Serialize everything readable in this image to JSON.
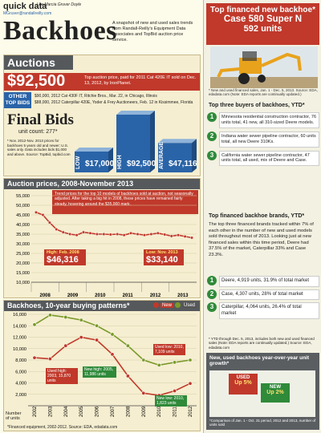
{
  "header": {
    "kicker": "quick data",
    "byline": "| by Marcia Gruver Doyle",
    "email": "MGruver@randallreilly.com",
    "title": "Backhoes",
    "intro": "A snapshot of new and used sales trends from Randall-Reilly's Equipment Data Associates and TopBid auction price service."
  },
  "auctions": {
    "heading": "Auctions",
    "top_price": "$92,500",
    "top_price_text": "Top auction price, paid for 2011 Cat 420E IT sold on Dec. 13, 2012, by IronPlanet.",
    "other_label": "OTHER TOP BIDS",
    "other_bids": [
      "$90,000, 2012 Cat 430F IT, Ritchie Bros., Mar. 22, in Chicago, Illinois",
      "$88,000, 2012 Caterpillar 420E, Yoder & Frey Auctioneers, Feb. 12 in Kissimmee, Florida"
    ]
  },
  "final_bids": {
    "heading": "Final Bids",
    "unit_count": "unit count: 277*",
    "note": "* Nov. 2012-Nov. 2013 prices for backhoes 5 years old and newer; U.S. sales only. Data includes bids $1,000 and above. Source: TopBid, topbid.com",
    "bars": [
      {
        "label": "LOW",
        "value": "$17,000",
        "level": 0.18
      },
      {
        "label": "HIGH",
        "value": "$92,500",
        "level": 1.0
      },
      {
        "label": "AVERAGE",
        "value": "$47,116",
        "level": 0.51
      }
    ]
  },
  "auction_chart": {
    "heading": "Auction prices, 2008-November 2013",
    "desc": "Trend prices for the top 10 models of backhoes sold at auction, not seasonally adjusted. After taking a big hit in 2008, these prices have remained fairly steady, hovering around the $35,000 mark.",
    "high_label": "High: Feb. 2008",
    "high_value": "$46,316",
    "low_label": "Low: Nov. 2013",
    "low_value": "$33,140",
    "yticks": [
      "55,000",
      "50,000",
      "45,000",
      "40,000",
      "35,000",
      "30,000",
      "25,000",
      "20,000",
      "15,000",
      "10,000"
    ],
    "xyears": [
      "2008",
      "2009",
      "2010",
      "2011",
      "2012",
      "2013"
    ]
  },
  "buying_chart": {
    "heading": "Backhoes, 10-year buying patterns*",
    "legend_new": "New",
    "legend_used": "Used",
    "yticks": [
      "16,000",
      "14,000",
      "12,000",
      "10,000",
      "8,000",
      "6,000",
      "4,000",
      "2,000"
    ],
    "xlabels": [
      "2002",
      "2003",
      "2004",
      "2005",
      "2006",
      "2007",
      "2008",
      "2009",
      "2010",
      "2011",
      "2012"
    ],
    "ann_used_high": "Used high: 2003, 15,870 units",
    "ann_new_high": "New high: 2005, 11,986 units",
    "ann_used_low": "Used low: 2010, 7,109 units",
    "ann_new_low": "New low: 2010, 1,823 units",
    "ylabel": "Number of units",
    "footnote": "*Financed equipment, 2002-2012. Source: EDA, edadata.com"
  },
  "right": {
    "box_title": "Top financed new backhoe*",
    "model": "Case 580 Super N",
    "units": "592 units",
    "box_note": "* New and used financed sales, Jan. 1 - Dec. 5, 2013. Source: EDA, edadata.com (Note: EDA reports are continually updated.)",
    "buyers_heading": "Top three buyers of backhoes, YTD*",
    "buyers": [
      {
        "n": "1",
        "text": "Minnesota residential construction contractor, 76 units total, 41 new, all 310-sized Deere models."
      },
      {
        "n": "2",
        "text": "Indiana water sewer pipeline contractor, 60 units total, all new Deere 310Ks."
      },
      {
        "n": "3",
        "text": "California water sewer pipeline contractor, 47 units total, all used, mix of Deere and Case."
      }
    ],
    "brands_heading": "Top financed backhoe brands, YTD*",
    "brands_text": "The top three financed brands tracked within 7% of each other in the number of new and used models sold throughout most of 2013. Looking just at new financed sales within this time period, Deere had 37.5% of the market, Caterpillar 33% and Case 23.3%.",
    "brands": [
      {
        "n": "1",
        "text": "Deere, 4,919 units, 31.9% of total market"
      },
      {
        "n": "2",
        "text": "Case, 4,307 units, 28% of total market"
      },
      {
        "n": "3",
        "text": "Caterpillar, 4,064 units, 26.4% of total market"
      }
    ],
    "brands_note": "* YTD through Dec. 5, 2013, includes both new and used financed sales (Note: EDA reports are continually updated.) Source: EDA, edadata.com",
    "growth_heading": "New, used backhoes year-over-year unit growth*",
    "used_label": "USED",
    "used_value": "Up 5%",
    "new_label": "NEW",
    "new_value": "Up 2%",
    "growth_note": "*Comparison of Jan. 1 - Oct. 31 period, 2012 and 2013, number of units sold"
  },
  "chart_data": [
    {
      "type": "line",
      "title": "Auction prices, 2008-November 2013",
      "ylim": [
        10000,
        55000
      ],
      "x": [
        "2008-02",
        "2008-05",
        "2008-08",
        "2008-11",
        "2009-02",
        "2009-05",
        "2009-08",
        "2009-11",
        "2010-02",
        "2010-05",
        "2010-08",
        "2010-11",
        "2011-02",
        "2011-05",
        "2011-08",
        "2011-11",
        "2012-02",
        "2012-05",
        "2012-08",
        "2012-11",
        "2013-02",
        "2013-05",
        "2013-08",
        "2013-11"
      ],
      "series": [
        {
          "name": "",
          "values": [
            46316,
            45000,
            41000,
            37500,
            36000,
            35000,
            34500,
            36000,
            35500,
            35000,
            35000,
            34800,
            35000,
            34500,
            35500,
            35000,
            34500,
            35000,
            35500,
            34800,
            34000,
            34500,
            33800,
            33140
          ]
        }
      ]
    },
    {
      "type": "line",
      "title": "Backhoes, 10-year buying patterns*",
      "ylim": [
        0,
        16000
      ],
      "categories": [
        "2002",
        "2003",
        "2004",
        "2005",
        "2006",
        "2007",
        "2008",
        "2009",
        "2010",
        "2011",
        "2012"
      ],
      "series": [
        {
          "name": "New",
          "values": [
            8400,
            8200,
            10500,
            11986,
            11500,
            9000,
            5200,
            2200,
            1823,
            2600,
            3900
          ]
        },
        {
          "name": "Used",
          "values": [
            14200,
            15870,
            15500,
            15000,
            14000,
            12500,
            10500,
            8000,
            7109,
            7600,
            8000
          ]
        }
      ]
    }
  ]
}
